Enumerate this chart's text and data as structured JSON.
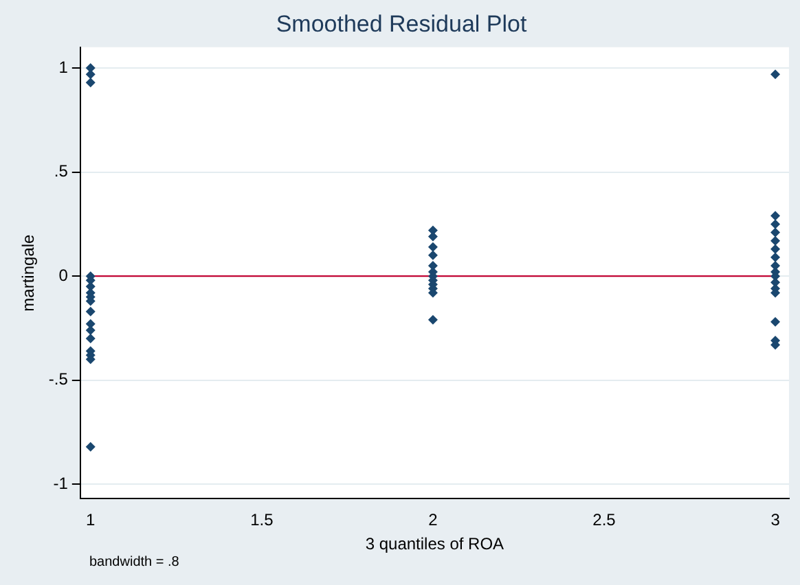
{
  "chart_data": {
    "type": "scatter",
    "title": "Smoothed Residual Plot",
    "xlabel": "3 quantiles of ROA",
    "ylabel": "martingale",
    "annotations": [
      "bandwidth = .8"
    ],
    "xlim": [
      0.97,
      3.04
    ],
    "xticks": [
      1,
      1.5,
      2,
      2.5,
      3
    ],
    "ylim": [
      -1.07,
      1.1
    ],
    "yticks": [
      {
        "value": -1,
        "label": "-1"
      },
      {
        "value": -0.5,
        "label": "-.5"
      },
      0,
      {
        "value": 0.5,
        "label": ".5"
      },
      1
    ],
    "grid": "y",
    "legend": false,
    "marker": "diamond",
    "series": [
      {
        "color": "#1a476f",
        "x": [
          1,
          1,
          1,
          1,
          1,
          1,
          1,
          1,
          1,
          1,
          1,
          1,
          1,
          1,
          1,
          1,
          1,
          2,
          2,
          2,
          2,
          2,
          2,
          2,
          2,
          2,
          2,
          2,
          2,
          3,
          3,
          3,
          3,
          3,
          3,
          3,
          3,
          3,
          3,
          3,
          3,
          3,
          3,
          3,
          3
        ],
        "values": [
          1.0,
          0.97,
          0.93,
          0.0,
          -0.02,
          -0.05,
          -0.08,
          -0.1,
          -0.12,
          -0.17,
          -0.23,
          -0.26,
          -0.3,
          -0.36,
          -0.38,
          -0.4,
          -0.82,
          0.22,
          0.19,
          0.14,
          0.1,
          0.05,
          0.02,
          0,
          -0.02,
          -0.04,
          -0.06,
          -0.08,
          -0.21,
          0.97,
          0.29,
          0.25,
          0.21,
          0.17,
          0.13,
          0.09,
          0.05,
          0.02,
          0,
          -0.03,
          -0.06,
          -0.08,
          -0.22,
          -0.31,
          -0.33
        ]
      },
      {
        "type": "line",
        "color": "#c10534",
        "x": [
          1,
          3
        ],
        "values": [
          0,
          0
        ],
        "marker": "none"
      }
    ]
  }
}
